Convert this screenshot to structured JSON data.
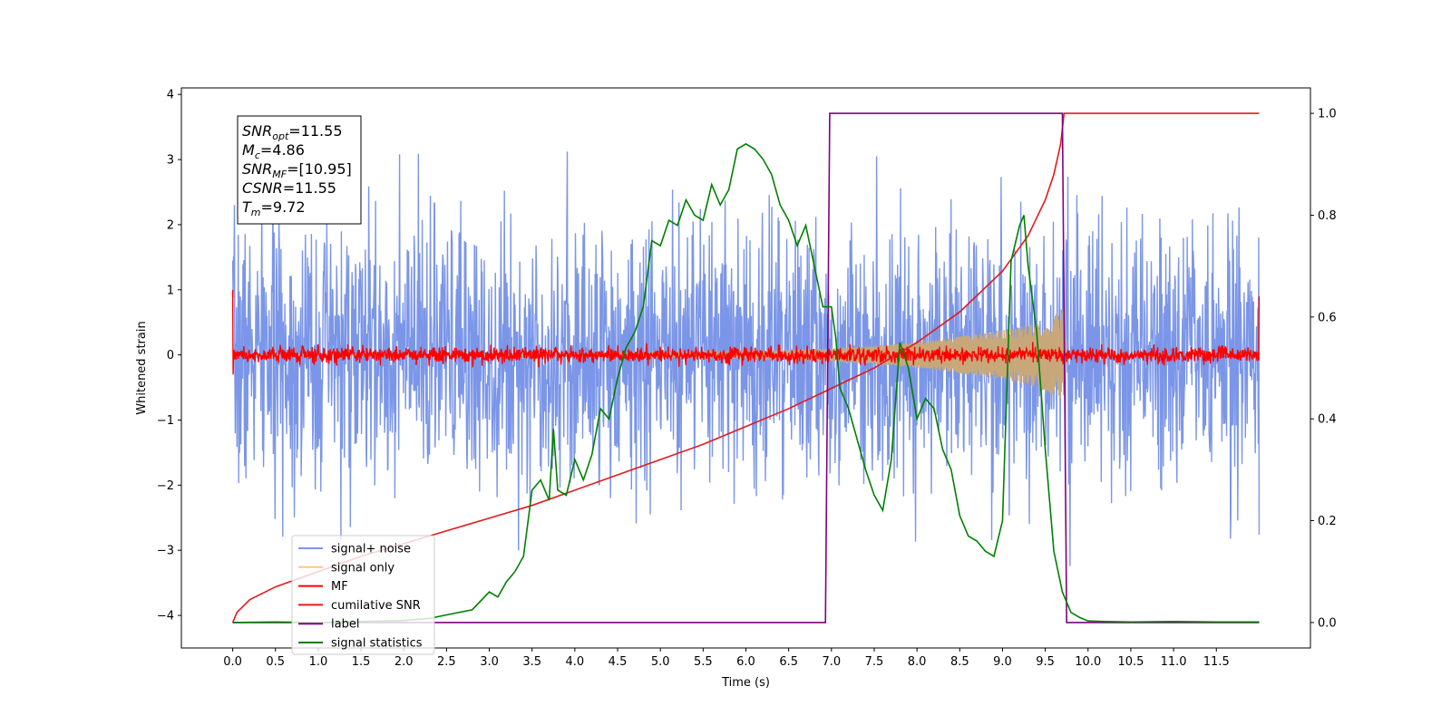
{
  "chart_data": {
    "type": "line",
    "xlabel": "Time (s)",
    "ylabel": "Whitened strain",
    "xlim": [
      -0.6,
      12.6
    ],
    "ylim": [
      -4.5,
      4.1
    ],
    "y2lim": [
      -0.05,
      1.05
    ],
    "x_ticks": [
      0.0,
      0.5,
      1.0,
      1.5,
      2.0,
      2.5,
      3.0,
      3.5,
      4.0,
      4.5,
      5.0,
      5.5,
      6.0,
      6.5,
      7.0,
      7.5,
      8.0,
      8.5,
      9.0,
      9.5,
      10.0,
      10.5,
      11.0,
      11.5
    ],
    "x_tick_labels": [
      "0.0",
      "0.5",
      "1.0",
      "1.5",
      "2.0",
      "2.5",
      "3.0",
      "3.5",
      "4.0",
      "4.5",
      "5.0",
      "5.5",
      "6.0",
      "6.5",
      "7.0",
      "7.5",
      "8.0",
      "8.5",
      "9.0",
      "9.5",
      "10.0",
      "10.5",
      "11.0",
      "11.5"
    ],
    "y_ticks": [
      4,
      3,
      2,
      1,
      0,
      -1,
      -2,
      -3,
      -4
    ],
    "y_tick_labels": [
      "4",
      "3",
      "2",
      "1",
      "0",
      "−1",
      "−2",
      "−3",
      "−4"
    ],
    "y2_ticks": [
      1.0,
      0.8,
      0.6,
      0.4,
      0.2,
      0.0
    ],
    "y2_tick_labels": [
      "1.0",
      "0.8",
      "0.6",
      "0.4",
      "0.2",
      "0.0"
    ],
    "noise": {
      "t_start": 0.0,
      "t_end": 12.0,
      "samples": 2400,
      "sigma": 1.0,
      "mf_sigma": 0.06,
      "seed": 7
    },
    "series": [
      {
        "name": "signal+ noise",
        "axis": "left",
        "color": "#7b96e8",
        "kind": "noise"
      },
      {
        "name": "signal only",
        "axis": "left",
        "color": "#c8a87a",
        "kind": "chirp",
        "envelope_x": [
          0.0,
          3.0,
          5.0,
          6.0,
          7.0,
          7.5,
          8.0,
          8.5,
          9.0,
          9.3,
          9.5,
          9.65,
          9.72,
          9.75
        ],
        "envelope_y": [
          0.0,
          0.02,
          0.04,
          0.06,
          0.1,
          0.14,
          0.2,
          0.28,
          0.38,
          0.46,
          0.55,
          0.65,
          0.72,
          0.0
        ]
      },
      {
        "name": "MF",
        "axis": "left",
        "color": "#ff0000",
        "kind": "mf"
      },
      {
        "name": "cumilative SNR",
        "axis": "right",
        "color": "#e31a1c",
        "x": [
          0.0,
          0.05,
          0.2,
          0.5,
          1.0,
          1.5,
          2.0,
          2.5,
          3.0,
          3.5,
          4.0,
          4.5,
          5.0,
          5.5,
          6.0,
          6.5,
          7.0,
          7.5,
          8.0,
          8.5,
          9.0,
          9.3,
          9.5,
          9.6,
          9.68,
          9.72,
          9.75,
          10.0,
          11.0,
          12.0
        ],
        "y": [
          0.0,
          0.02,
          0.045,
          0.07,
          0.1,
          0.13,
          0.155,
          0.18,
          0.205,
          0.23,
          0.26,
          0.29,
          0.32,
          0.35,
          0.385,
          0.42,
          0.46,
          0.5,
          0.55,
          0.61,
          0.69,
          0.76,
          0.83,
          0.88,
          0.94,
          1.0,
          1.0,
          1.0,
          1.0,
          1.0
        ]
      },
      {
        "name": "label",
        "axis": "right",
        "color": "#800080",
        "x": [
          0.0,
          6.93,
          6.98,
          9.7,
          9.75,
          12.0
        ],
        "y": [
          0.0,
          0.0,
          1.0,
          1.0,
          0.0,
          0.0
        ]
      },
      {
        "name": "signal statistics",
        "axis": "right",
        "color": "#008000",
        "x": [
          0.0,
          0.5,
          1.0,
          1.5,
          2.0,
          2.3,
          2.5,
          2.8,
          3.0,
          3.1,
          3.2,
          3.3,
          3.4,
          3.5,
          3.6,
          3.7,
          3.75,
          3.8,
          3.9,
          4.0,
          4.1,
          4.2,
          4.3,
          4.4,
          4.5,
          4.6,
          4.7,
          4.8,
          4.9,
          5.0,
          5.1,
          5.2,
          5.3,
          5.4,
          5.5,
          5.6,
          5.7,
          5.8,
          5.9,
          6.0,
          6.1,
          6.2,
          6.3,
          6.4,
          6.5,
          6.6,
          6.7,
          6.8,
          6.9,
          7.0,
          7.05,
          7.1,
          7.2,
          7.3,
          7.4,
          7.5,
          7.6,
          7.7,
          7.8,
          7.9,
          8.0,
          8.1,
          8.2,
          8.3,
          8.4,
          8.5,
          8.6,
          8.7,
          8.8,
          8.9,
          9.0,
          9.1,
          9.2,
          9.25,
          9.3,
          9.4,
          9.5,
          9.6,
          9.7,
          9.8,
          9.9,
          10.0,
          10.2,
          10.5,
          11.0,
          11.5,
          12.0
        ],
        "y": [
          0.0,
          0.001,
          0.0,
          0.002,
          0.004,
          0.008,
          0.015,
          0.025,
          0.06,
          0.05,
          0.08,
          0.1,
          0.13,
          0.26,
          0.28,
          0.24,
          0.38,
          0.26,
          0.25,
          0.32,
          0.28,
          0.33,
          0.42,
          0.4,
          0.48,
          0.54,
          0.57,
          0.62,
          0.75,
          0.74,
          0.79,
          0.78,
          0.83,
          0.8,
          0.79,
          0.86,
          0.82,
          0.85,
          0.93,
          0.94,
          0.93,
          0.91,
          0.88,
          0.82,
          0.79,
          0.74,
          0.78,
          0.7,
          0.62,
          0.62,
          0.56,
          0.46,
          0.42,
          0.36,
          0.3,
          0.25,
          0.22,
          0.32,
          0.55,
          0.5,
          0.4,
          0.44,
          0.42,
          0.34,
          0.3,
          0.21,
          0.17,
          0.16,
          0.14,
          0.13,
          0.2,
          0.71,
          0.78,
          0.8,
          0.7,
          0.57,
          0.34,
          0.14,
          0.06,
          0.02,
          0.01,
          0.003,
          0.002,
          0.001,
          0.002,
          0.001,
          0.001
        ]
      }
    ],
    "legend": {
      "placement": "lower-left",
      "entries": [
        "signal+ noise",
        "signal only",
        "MF",
        "cumilative SNR",
        "label",
        "signal statistics"
      ]
    },
    "annotation_box": {
      "lines": [
        {
          "base": "SNR",
          "sub": "opt",
          "value": "=11.55"
        },
        {
          "base": "M",
          "sub": "c",
          "value": "=4.86"
        },
        {
          "base": "SNR",
          "sub": "MF",
          "value": "=[10.95]"
        },
        {
          "base": "CSNR",
          "sub": "",
          "value": "=11.55"
        },
        {
          "base": "T",
          "sub": "m",
          "value": "=9.72"
        }
      ]
    }
  }
}
